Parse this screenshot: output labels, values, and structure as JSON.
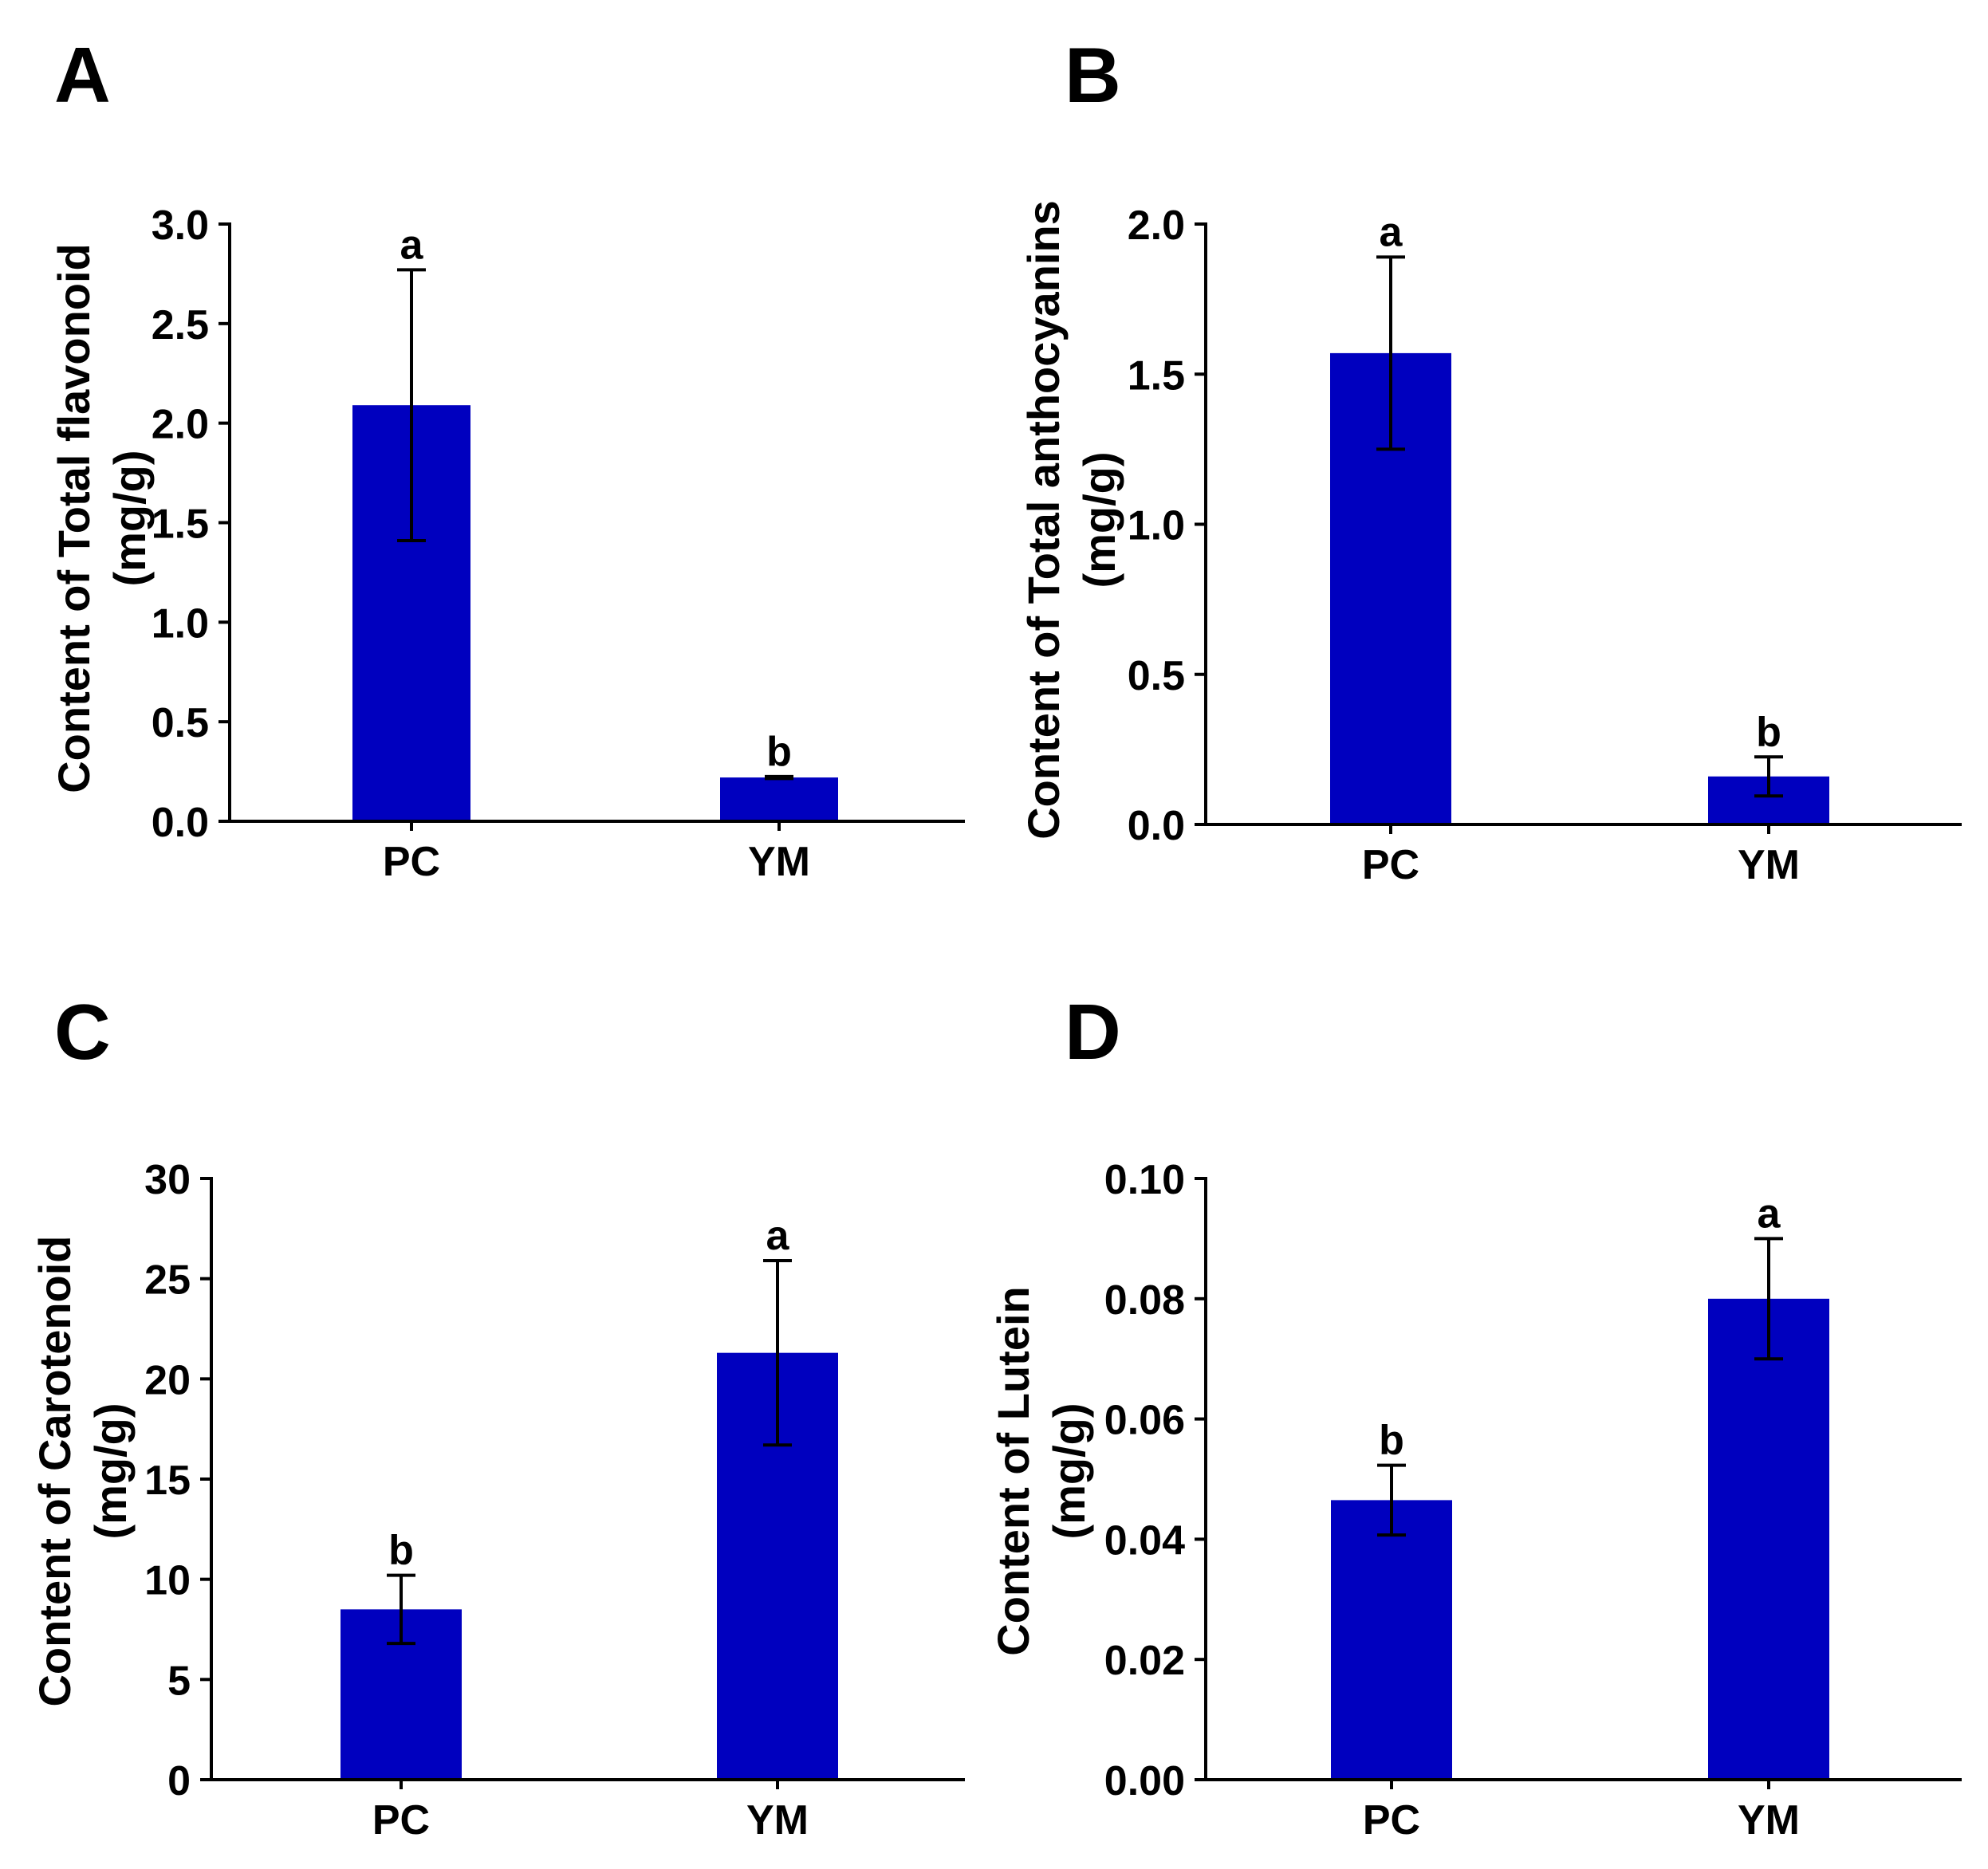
{
  "colors": {
    "bar": "#0000bf",
    "axis": "#000000",
    "text": "#000000"
  },
  "chart_data": [
    {
      "panel": "A",
      "type": "bar",
      "ylabel_line1": "Content of Total flavonoid",
      "ylabel_line2": "(mg/g)",
      "categories": [
        "PC",
        "YM"
      ],
      "values": [
        2.09,
        0.22
      ],
      "errors": [
        0.68,
        0.005
      ],
      "significance": [
        "a",
        "b"
      ],
      "ylim": [
        0,
        3.0
      ],
      "yticks": [
        "0.0",
        "0.5",
        "1.0",
        "1.5",
        "2.0",
        "2.5",
        "3.0"
      ]
    },
    {
      "panel": "B",
      "type": "bar",
      "ylabel_line1": "Content of Total anthocyanins",
      "ylabel_line2": "(mg/g)",
      "categories": [
        "PC",
        "YM"
      ],
      "values": [
        1.57,
        0.16
      ],
      "errors": [
        0.32,
        0.065
      ],
      "significance": [
        "a",
        "b"
      ],
      "ylim": [
        0,
        2.0
      ],
      "yticks": [
        "0.0",
        "0.5",
        "1.0",
        "1.5",
        "2.0"
      ]
    },
    {
      "panel": "C",
      "type": "bar",
      "ylabel_line1": "Content of Carotenoid",
      "ylabel_line2": "(mg/g)",
      "categories": [
        "PC",
        "YM"
      ],
      "values": [
        8.5,
        21.3
      ],
      "errors": [
        1.7,
        4.6
      ],
      "significance": [
        "b",
        "a"
      ],
      "ylim": [
        0,
        30
      ],
      "yticks": [
        "0",
        "5",
        "10",
        "15",
        "20",
        "25",
        "30"
      ]
    },
    {
      "panel": "D",
      "type": "bar",
      "ylabel_line1": "Content of Lutein",
      "ylabel_line2": "(mg/g)",
      "categories": [
        "PC",
        "YM"
      ],
      "values": [
        0.0465,
        0.08
      ],
      "errors": [
        0.0058,
        0.01
      ],
      "significance": [
        "b",
        "a"
      ],
      "ylim": [
        0,
        0.1
      ],
      "yticks": [
        "0.00",
        "0.02",
        "0.04",
        "0.06",
        "0.08",
        "0.10"
      ]
    }
  ]
}
